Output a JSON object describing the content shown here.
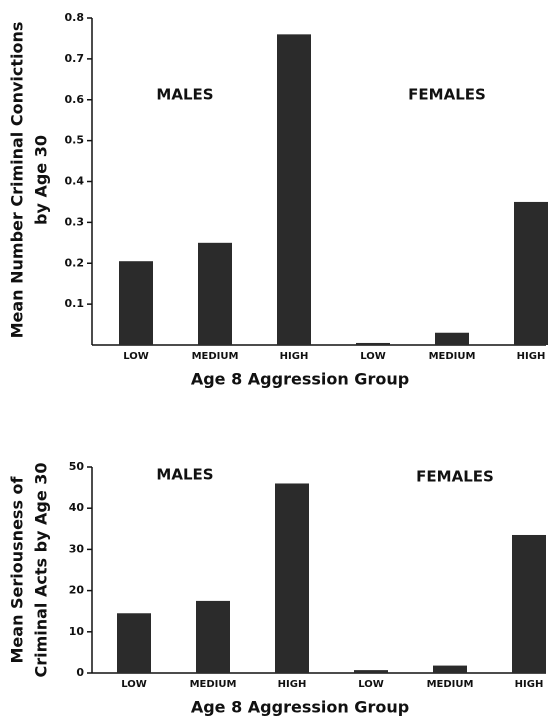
{
  "chart_data": [
    {
      "type": "bar",
      "y_label": [
        "Mean Number Criminal Convictions",
        "by Age 30"
      ],
      "x_label": "Age 8 Aggression Group",
      "annotations": [
        "MALES",
        "FEMALES"
      ],
      "categories": [
        "LOW",
        "MEDIUM",
        "HIGH",
        "LOW",
        "MEDIUM",
        "HIGH"
      ],
      "values": [
        0.205,
        0.25,
        0.76,
        0.005,
        0.03,
        0.35
      ],
      "color": "#2b2b2b",
      "ylim": [
        0,
        0.8
      ],
      "yticks": [
        0.1,
        0.2,
        0.3,
        0.4,
        0.5,
        0.6,
        0.7,
        0.8
      ],
      "grid": false
    },
    {
      "type": "bar",
      "y_label": [
        "Mean Seriousness of",
        "Criminal Acts by Age 30"
      ],
      "x_label": "Age 8 Aggression Group",
      "annotations": [
        "MALES",
        "FEMALES"
      ],
      "categories": [
        "LOW",
        "MEDIUM",
        "HIGH",
        "LOW",
        "MEDIUM",
        "HIGH"
      ],
      "values": [
        14.5,
        17.5,
        46,
        0.7,
        1.8,
        33.5
      ],
      "color": "#2b2b2b",
      "ylim": [
        0,
        50
      ],
      "yticks": [
        0,
        10,
        20,
        30,
        40,
        50
      ],
      "grid": false
    }
  ]
}
